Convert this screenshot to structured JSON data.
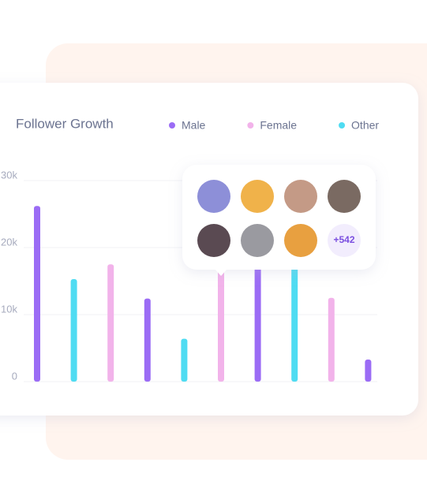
{
  "chart_data": {
    "type": "bar",
    "title": "Follower Growth",
    "categories": [
      null,
      null,
      null,
      null,
      null,
      null,
      null,
      null,
      null,
      null
    ],
    "series": [
      {
        "name": "Male",
        "color": "#9b6cf5",
        "values": [
          26200,
          null,
          null,
          12400,
          null,
          null,
          21000,
          null,
          null,
          3300
        ]
      },
      {
        "name": "Female",
        "color": "#f2b3ea",
        "values": [
          null,
          null,
          17500,
          null,
          null,
          17000,
          null,
          null,
          12500,
          null
        ]
      },
      {
        "name": "Other",
        "color": "#4fdcf2",
        "values": [
          null,
          15300,
          null,
          null,
          6400,
          null,
          null,
          18000,
          null,
          null
        ]
      }
    ],
    "ylim": [
      0,
      30000
    ],
    "yticks": [
      0,
      {
        "value": 10000,
        "label": "10k"
      },
      {
        "value": 20000,
        "label": "20k"
      },
      {
        "value": 30000,
        "label": "30k"
      }
    ],
    "grid": true,
    "annotations": [
      "+542"
    ]
  }
}
